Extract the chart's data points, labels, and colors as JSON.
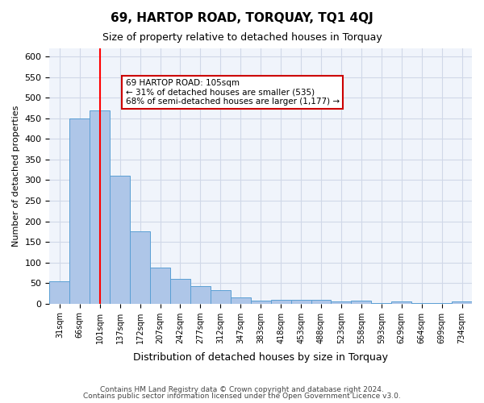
{
  "title": "69, HARTOP ROAD, TORQUAY, TQ1 4QJ",
  "subtitle": "Size of property relative to detached houses in Torquay",
  "xlabel": "Distribution of detached houses by size in Torquay",
  "ylabel": "Number of detached properties",
  "categories": [
    "31sqm",
    "66sqm",
    "101sqm",
    "137sqm",
    "172sqm",
    "207sqm",
    "242sqm",
    "277sqm",
    "312sqm",
    "347sqm",
    "383sqm",
    "418sqm",
    "453sqm",
    "488sqm",
    "523sqm",
    "558sqm",
    "593sqm",
    "629sqm",
    "664sqm",
    "699sqm",
    "734sqm"
  ],
  "values": [
    55,
    450,
    470,
    310,
    175,
    88,
    60,
    42,
    33,
    15,
    8,
    9,
    9,
    9,
    6,
    8,
    1,
    5,
    1,
    1,
    5
  ],
  "bar_color": "#aec6e8",
  "bar_edge_color": "#5a9fd4",
  "grid_color": "#d0d8e8",
  "background_color": "#f0f4fb",
  "red_line_x": 2,
  "annotation_text": "69 HARTOP ROAD: 105sqm\n← 31% of detached houses are smaller (535)\n68% of semi-detached houses are larger (1,177) →",
  "annotation_box_color": "#ffffff",
  "annotation_box_edge": "#cc0000",
  "footer_line1": "Contains HM Land Registry data © Crown copyright and database right 2024.",
  "footer_line2": "Contains public sector information licensed under the Open Government Licence v3.0.",
  "ylim": [
    0,
    620
  ],
  "yticks": [
    0,
    50,
    100,
    150,
    200,
    250,
    300,
    350,
    400,
    450,
    500,
    550,
    600
  ]
}
